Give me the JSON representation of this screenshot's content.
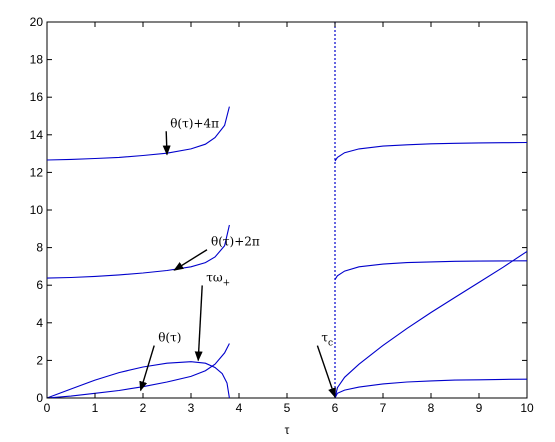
{
  "chart_data": {
    "type": "line",
    "title": "",
    "xlabel": "τ",
    "ylabel": "",
    "xlim": [
      0,
      10
    ],
    "ylim": [
      0,
      20
    ],
    "xticks": [
      0,
      1,
      2,
      3,
      4,
      5,
      6,
      7,
      8,
      9,
      10
    ],
    "yticks": [
      0,
      2,
      4,
      6,
      8,
      10,
      12,
      14,
      16,
      18,
      20
    ],
    "grid": false,
    "line_color": "#0000cc",
    "tau_c": 6,
    "series": [
      {
        "x": [
          0,
          0.5,
          1,
          1.5,
          2,
          2.5,
          3,
          3.3,
          3.5,
          3.7,
          3.8
        ],
        "y": [
          0,
          0.1,
          0.25,
          0.4,
          0.6,
          0.85,
          1.15,
          1.45,
          1.8,
          2.4,
          2.9
        ]
      },
      {
        "x": [
          0,
          0.5,
          1,
          1.5,
          2,
          2.5,
          3,
          3.3,
          3.5,
          3.65,
          3.75,
          3.8
        ],
        "y": [
          0,
          0.48,
          0.95,
          1.35,
          1.65,
          1.85,
          1.93,
          1.85,
          1.62,
          1.3,
          0.8,
          0
        ]
      },
      {
        "x": [
          0,
          0.5,
          1,
          1.5,
          2,
          2.5,
          3,
          3.3,
          3.5,
          3.7,
          3.8
        ],
        "y": [
          6.38,
          6.41,
          6.47,
          6.55,
          6.65,
          6.78,
          6.98,
          7.2,
          7.5,
          8.1,
          9.2
        ]
      },
      {
        "x": [
          0,
          0.5,
          1,
          1.5,
          2,
          2.5,
          3,
          3.3,
          3.5,
          3.7,
          3.8
        ],
        "y": [
          12.66,
          12.69,
          12.74,
          12.8,
          12.9,
          13.02,
          13.25,
          13.5,
          13.85,
          14.5,
          15.5
        ]
      },
      {
        "x": [
          6,
          6.05,
          6.2,
          6.5,
          7,
          7.5,
          8,
          8.5,
          9,
          9.5,
          10
        ],
        "y": [
          0,
          0.25,
          0.42,
          0.58,
          0.75,
          0.85,
          0.91,
          0.95,
          0.97,
          0.99,
          1.0
        ]
      },
      {
        "x": [
          6,
          6.05,
          6.2,
          6.5,
          7,
          7.5,
          8,
          8.5,
          9,
          9.5,
          10
        ],
        "y": [
          0,
          0.55,
          1.1,
          1.8,
          2.8,
          3.7,
          4.55,
          5.35,
          6.15,
          6.95,
          7.8
        ]
      },
      {
        "x": [
          6,
          6.05,
          6.2,
          6.5,
          7,
          7.5,
          8,
          8.5,
          9,
          9.5,
          10
        ],
        "y": [
          6.3,
          6.5,
          6.75,
          6.98,
          7.12,
          7.2,
          7.24,
          7.27,
          7.28,
          7.29,
          7.3
        ]
      },
      {
        "x": [
          6,
          6.05,
          6.2,
          6.5,
          7,
          7.5,
          8,
          8.5,
          9,
          9.5,
          10
        ],
        "y": [
          12.6,
          12.8,
          13.05,
          13.25,
          13.4,
          13.47,
          13.52,
          13.55,
          13.57,
          13.58,
          13.59
        ]
      }
    ],
    "annotations": [
      {
        "text": "θ(τ)",
        "sub": "",
        "text_x": 2.4,
        "text_y": 3.0,
        "arrow_x": 1.95,
        "arrow_y": 0.4
      },
      {
        "text": "τω",
        "sub": "+",
        "text_x": 3.4,
        "text_y": 6.2,
        "arrow_x": 3.15,
        "arrow_y": 2.0
      },
      {
        "text": "θ(τ)+2π",
        "sub": "",
        "text_x": 3.5,
        "text_y": 8.1,
        "arrow_x": 2.65,
        "arrow_y": 6.8
      },
      {
        "text": "θ(τ)+4π",
        "sub": "",
        "text_x": 2.65,
        "text_y": 14.4,
        "arrow_x": 2.5,
        "arrow_y": 12.95
      },
      {
        "text": "τ",
        "sub": "c",
        "text_x": 5.8,
        "text_y": 3.0,
        "arrow_x": 6.0,
        "arrow_y": 0.05
      }
    ]
  }
}
